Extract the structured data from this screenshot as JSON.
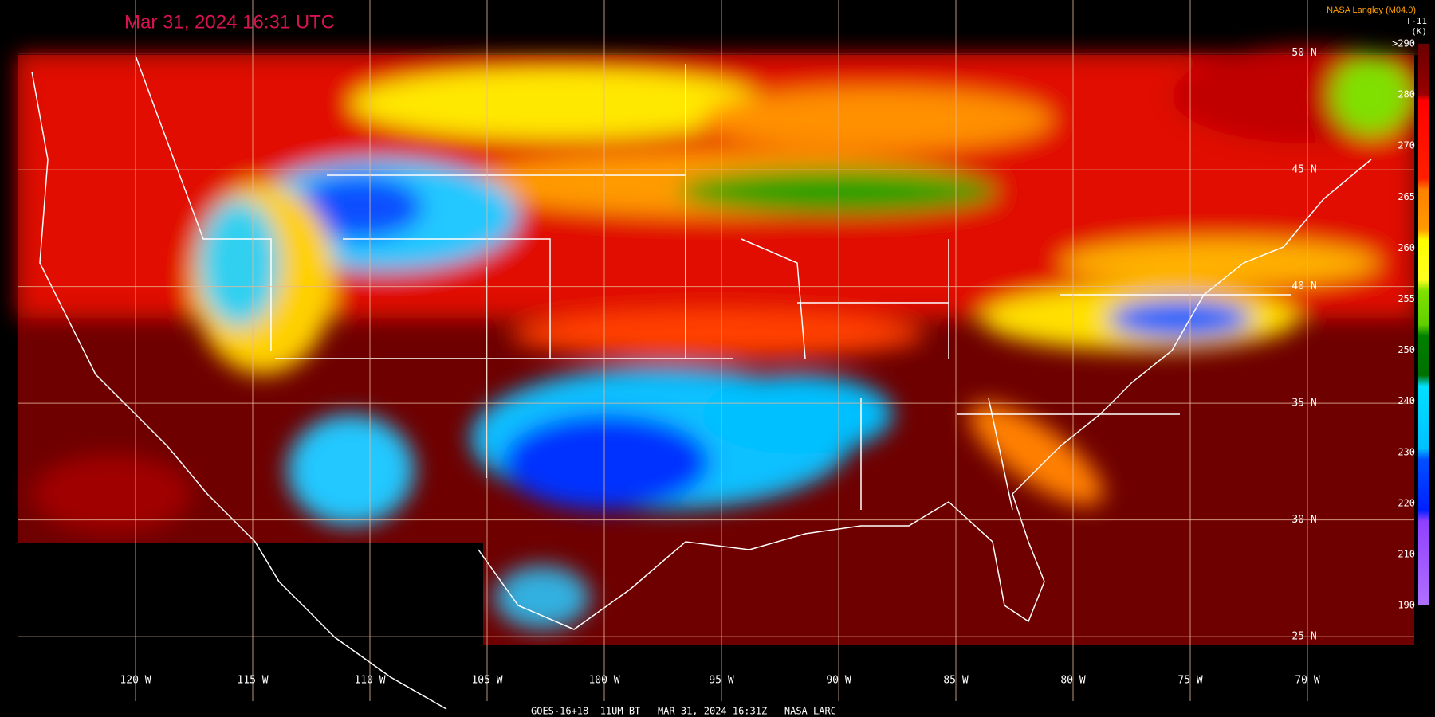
{
  "header": {
    "title": "Mar 31, 2024 16:31 UTC",
    "source": "NASA Langley (M04.0)"
  },
  "colorbar": {
    "title": "T-11",
    "unit": "(K)",
    "ticks": [
      {
        "value": 290,
        "label": ">290"
      },
      280,
      270,
      265,
      260,
      255,
      250,
      240,
      230,
      220,
      210,
      190
    ]
  },
  "grid": {
    "lat_labels": [
      "50 N",
      "45 N",
      "40 N",
      "35 N",
      "30 N",
      "25 N"
    ],
    "lon_labels": [
      "120 W",
      "115 W",
      "110 W",
      "105 W",
      "100 W",
      "95 W",
      "90 W",
      "85 W",
      "80 W",
      "75 W",
      "70 W"
    ]
  },
  "footer": {
    "text": "GOES-16+18  11UM BT   MAR 31, 2024 16:31Z   NASA LARC"
  }
}
